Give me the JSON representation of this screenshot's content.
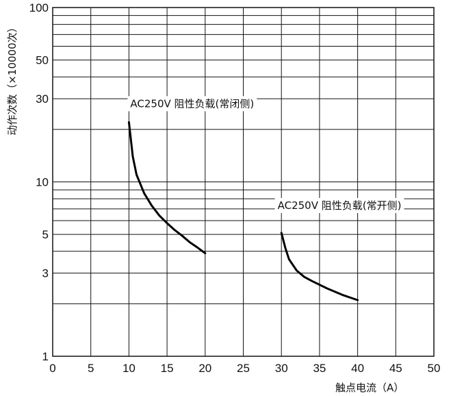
{
  "chart_data": {
    "type": "line",
    "xlabel": "触点电流（A）",
    "ylabel": "动作次数（×10000次）",
    "xlim": [
      0,
      50
    ],
    "ylim": [
      1,
      100
    ],
    "yscale": "log",
    "grid": true,
    "xticks": [
      0,
      5,
      10,
      15,
      20,
      25,
      30,
      35,
      40,
      45,
      50
    ],
    "yticks": [
      1,
      3,
      5,
      10,
      30,
      50,
      100
    ],
    "series": [
      {
        "name": "AC250V  阻性负载(常闭侧)",
        "points": [
          [
            10,
            22
          ],
          [
            10.5,
            14
          ],
          [
            11,
            11
          ],
          [
            12,
            8.6
          ],
          [
            13,
            7.3
          ],
          [
            14,
            6.4
          ],
          [
            15,
            5.8
          ],
          [
            16,
            5.3
          ],
          [
            17,
            4.9
          ],
          [
            18,
            4.5
          ],
          [
            19,
            4.2
          ],
          [
            20,
            3.9
          ]
        ]
      },
      {
        "name": "AC250V  阻性负载(常开侧)",
        "points": [
          [
            30,
            5.1
          ],
          [
            30.5,
            4.2
          ],
          [
            31,
            3.6
          ],
          [
            32,
            3.1
          ],
          [
            33,
            2.85
          ],
          [
            34,
            2.7
          ],
          [
            36,
            2.45
          ],
          [
            38,
            2.25
          ],
          [
            40,
            2.1
          ]
        ]
      }
    ]
  }
}
